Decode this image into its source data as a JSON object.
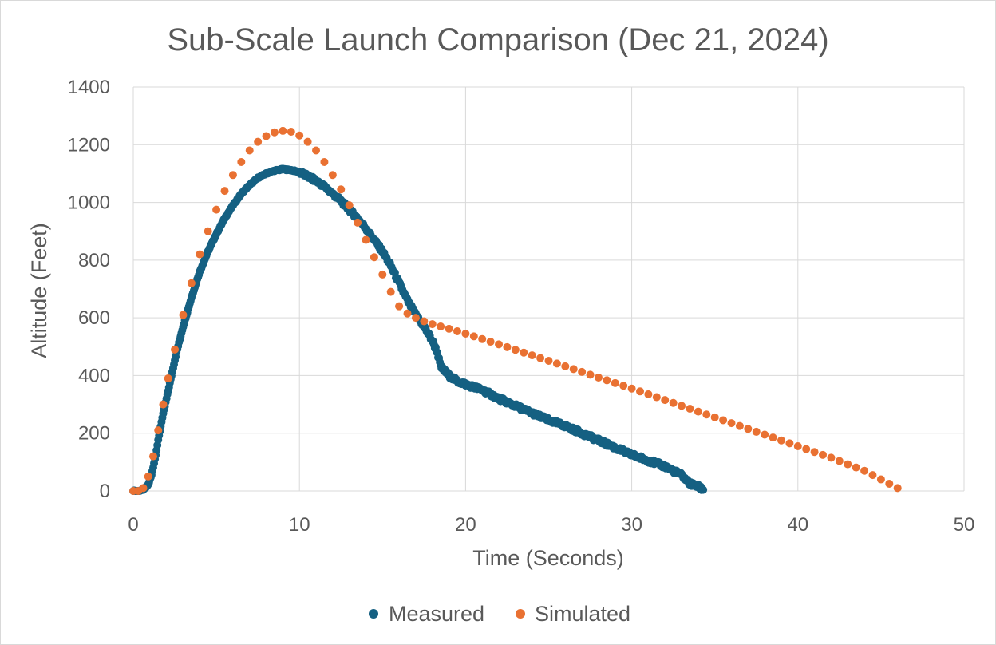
{
  "chart_data": {
    "type": "scatter",
    "title": "Sub-Scale Launch Comparison (Dec 21, 2024)",
    "xlabel": "Time (Seconds)",
    "ylabel": "Altitude (Feet)",
    "xlim": [
      0,
      50
    ],
    "ylim": [
      0,
      1400
    ],
    "x_ticks": [
      "0",
      "10",
      "20",
      "30",
      "40",
      "50"
    ],
    "y_ticks": [
      "0",
      "200",
      "400",
      "600",
      "800",
      "1000",
      "1200",
      "1400"
    ],
    "grid": true,
    "legend": "bottom",
    "colors": {
      "Measured": "#156082",
      "Simulated": "#E97132"
    },
    "series": [
      {
        "name": "Measured",
        "color": "#156082",
        "points": [
          [
            0.0,
            0
          ],
          [
            0.3,
            0
          ],
          [
            0.5,
            2
          ],
          [
            0.7,
            8
          ],
          [
            0.9,
            22
          ],
          [
            1.1,
            55
          ],
          [
            1.3,
            110
          ],
          [
            1.5,
            175
          ],
          [
            1.7,
            240
          ],
          [
            2.0,
            320
          ],
          [
            2.3,
            400
          ],
          [
            2.6,
            480
          ],
          [
            3.0,
            570
          ],
          [
            3.5,
            670
          ],
          [
            4.0,
            760
          ],
          [
            4.5,
            830
          ],
          [
            5.0,
            890
          ],
          [
            5.5,
            945
          ],
          [
            6.0,
            990
          ],
          [
            6.5,
            1030
          ],
          [
            7.0,
            1060
          ],
          [
            7.5,
            1085
          ],
          [
            8.0,
            1100
          ],
          [
            8.5,
            1110
          ],
          [
            9.0,
            1115
          ],
          [
            9.5,
            1112
          ],
          [
            10.0,
            1105
          ],
          [
            10.5,
            1090
          ],
          [
            11.0,
            1075
          ],
          [
            11.5,
            1055
          ],
          [
            12.0,
            1030
          ],
          [
            12.5,
            1005
          ],
          [
            13.0,
            975
          ],
          [
            13.5,
            945
          ],
          [
            14.0,
            910
          ],
          [
            14.5,
            870
          ],
          [
            15.0,
            830
          ],
          [
            15.5,
            780
          ],
          [
            16.0,
            720
          ],
          [
            16.5,
            660
          ],
          [
            17.0,
            610
          ],
          [
            17.5,
            570
          ],
          [
            18.0,
            520
          ],
          [
            18.3,
            480
          ],
          [
            18.5,
            430
          ],
          [
            19.0,
            400
          ],
          [
            19.5,
            380
          ],
          [
            20.0,
            370
          ],
          [
            21.0,
            350
          ],
          [
            22.0,
            320
          ],
          [
            23.0,
            295
          ],
          [
            24.0,
            270
          ],
          [
            25.0,
            245
          ],
          [
            26.0,
            225
          ],
          [
            27.0,
            200
          ],
          [
            28.0,
            175
          ],
          [
            29.0,
            150
          ],
          [
            30.0,
            125
          ],
          [
            31.0,
            105
          ],
          [
            32.0,
            85
          ],
          [
            33.0,
            55
          ],
          [
            33.5,
            25
          ],
          [
            34.0,
            15
          ],
          [
            34.3,
            5
          ]
        ]
      },
      {
        "name": "Simulated",
        "color": "#E97132",
        "points": [
          [
            0.0,
            0
          ],
          [
            0.3,
            0
          ],
          [
            0.6,
            10
          ],
          [
            0.9,
            50
          ],
          [
            1.2,
            120
          ],
          [
            1.5,
            210
          ],
          [
            1.8,
            300
          ],
          [
            2.1,
            390
          ],
          [
            2.5,
            490
          ],
          [
            3.0,
            610
          ],
          [
            3.5,
            720
          ],
          [
            4.0,
            820
          ],
          [
            4.5,
            900
          ],
          [
            5.0,
            975
          ],
          [
            5.5,
            1040
          ],
          [
            6.0,
            1095
          ],
          [
            6.5,
            1140
          ],
          [
            7.0,
            1180
          ],
          [
            7.5,
            1210
          ],
          [
            8.0,
            1230
          ],
          [
            8.5,
            1243
          ],
          [
            9.0,
            1248
          ],
          [
            9.5,
            1245
          ],
          [
            10.0,
            1232
          ],
          [
            10.5,
            1210
          ],
          [
            11.0,
            1180
          ],
          [
            11.5,
            1140
          ],
          [
            12.0,
            1095
          ],
          [
            12.5,
            1045
          ],
          [
            13.0,
            990
          ],
          [
            13.5,
            930
          ],
          [
            14.0,
            870
          ],
          [
            14.5,
            810
          ],
          [
            15.0,
            750
          ],
          [
            15.5,
            690
          ],
          [
            16.0,
            640
          ],
          [
            16.5,
            615
          ],
          [
            17.0,
            600
          ],
          [
            17.5,
            588
          ],
          [
            18.0,
            578
          ],
          [
            19.0,
            562
          ],
          [
            20.0,
            545
          ],
          [
            22.0,
            508
          ],
          [
            24.0,
            470
          ],
          [
            26.0,
            432
          ],
          [
            28.0,
            393
          ],
          [
            30.0,
            355
          ],
          [
            32.0,
            315
          ],
          [
            34.0,
            275
          ],
          [
            36.0,
            235
          ],
          [
            38.0,
            195
          ],
          [
            40.0,
            155
          ],
          [
            42.0,
            115
          ],
          [
            44.0,
            70
          ],
          [
            45.0,
            40
          ],
          [
            46.0,
            10
          ]
        ]
      }
    ]
  }
}
